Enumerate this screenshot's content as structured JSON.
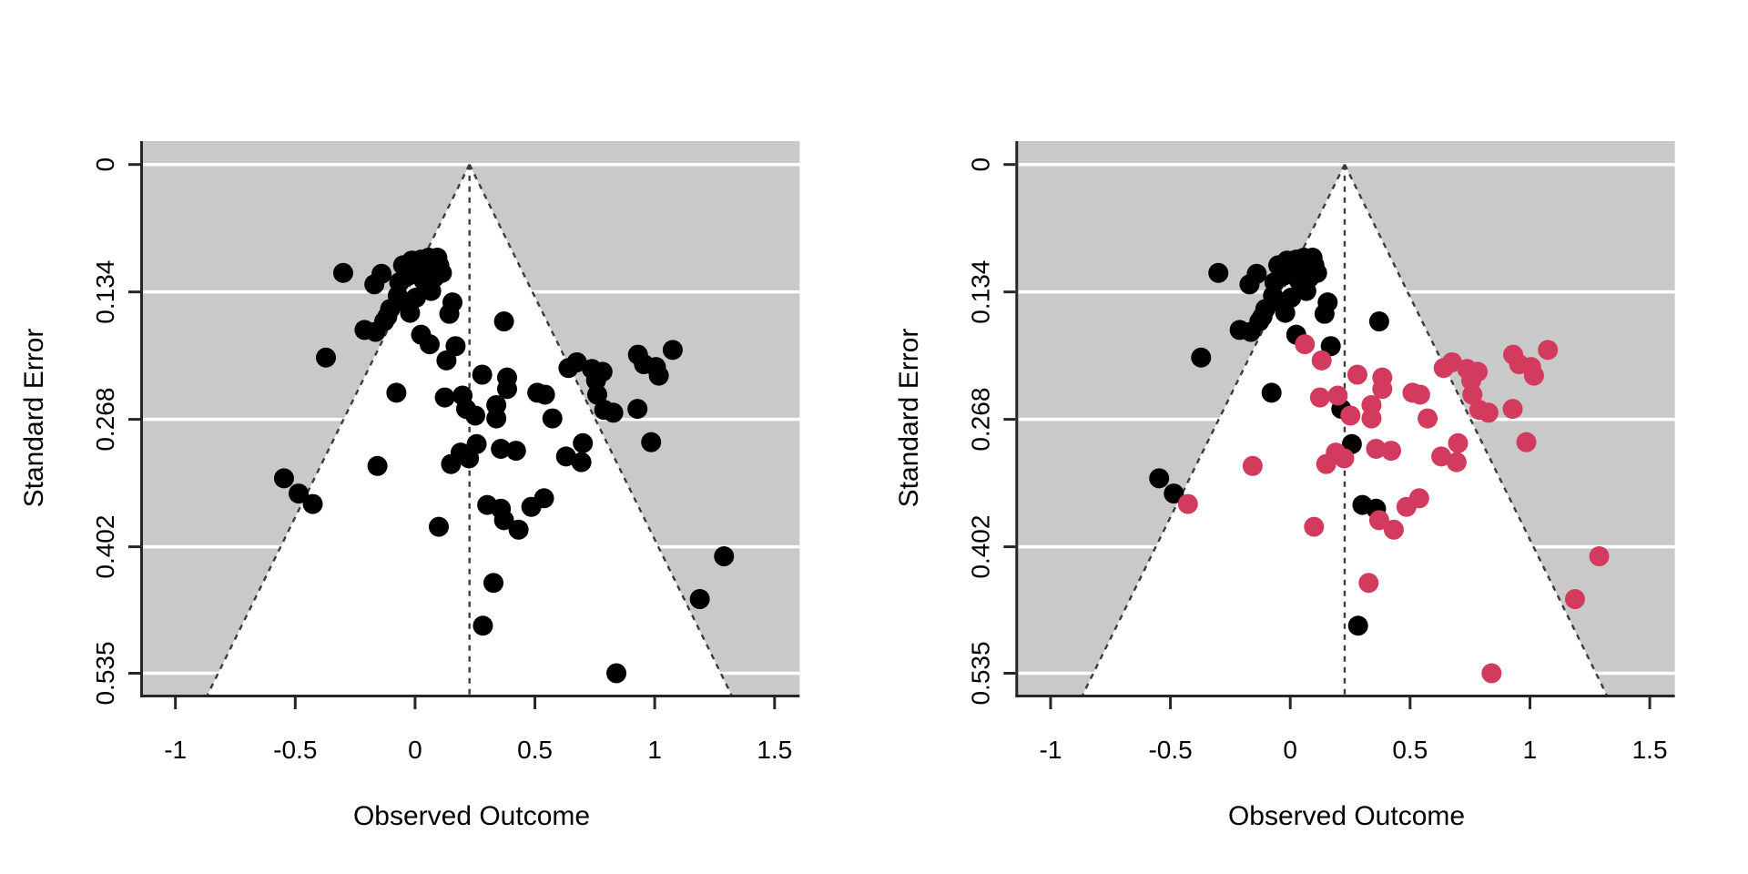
{
  "figure": {
    "background": "#ffffff",
    "description_note": "Two side-by-side funnel plots; right panel colors a subset of points red"
  },
  "chart_data": {
    "type": "scatter",
    "subtype": "funnel-plot-pair",
    "xlabel": "Observed Outcome",
    "ylabel": "Standard Error",
    "x_ticks": [
      -1,
      -0.5,
      0,
      0.5,
      1,
      1.5
    ],
    "x_tick_labels": [
      "-1",
      "-0.5",
      "0",
      "0.5",
      "1",
      "1.5"
    ],
    "y_ticks": [
      0,
      0.134,
      0.268,
      0.402,
      0.535
    ],
    "y_tick_labels": [
      "0",
      "0.134",
      "0.268",
      "0.402",
      "0.535"
    ],
    "xlim": [
      -1.1355,
      1.6045
    ],
    "se_lim": [
      -0.0246,
      0.5575
    ],
    "center_line_x": 0.227,
    "funnel_ci_z": 1.96,
    "grid": true,
    "legend": false,
    "colors": {
      "base": "#000000",
      "subset": "#d23b5e",
      "panel_bg": "#c9c9c9",
      "funnel_fill": "#ffffff",
      "grid": "#ffffff",
      "dash": "#3c3c3c",
      "axis": "#262626",
      "text": "#000000"
    },
    "points_format": "[observed_outcome, standard_error]",
    "series": [
      {
        "name": "studies-black-in-both-panels",
        "color_key": "base",
        "points": [
          [
            -0.3,
            0.114
          ],
          [
            -0.14,
            0.115
          ],
          [
            -0.17,
            0.126
          ],
          [
            -0.05,
            0.106
          ],
          [
            -0.013,
            0.101
          ],
          [
            0.025,
            0.1
          ],
          [
            0.057,
            0.098
          ],
          [
            0.093,
            0.098
          ],
          [
            0.101,
            0.106
          ],
          [
            0.074,
            0.109
          ],
          [
            0.036,
            0.111
          ],
          [
            0.004,
            0.112
          ],
          [
            -0.028,
            0.117
          ],
          [
            -0.066,
            0.124
          ],
          [
            0.036,
            0.122
          ],
          [
            0.08,
            0.119
          ],
          [
            0.112,
            0.114
          ],
          [
            0.067,
            0.133
          ],
          [
            0.004,
            0.14
          ],
          [
            -0.072,
            0.138
          ],
          [
            -0.028,
            0.148
          ],
          [
            0.156,
            0.145
          ],
          [
            0.143,
            0.157
          ],
          [
            -0.104,
            0.152
          ],
          [
            -0.116,
            0.16
          ],
          [
            -0.021,
            0.156
          ],
          [
            -0.211,
            0.174
          ],
          [
            -0.165,
            0.176
          ],
          [
            -0.129,
            0.165
          ],
          [
            0.025,
            0.179
          ],
          [
            0.169,
            0.191
          ],
          [
            0.371,
            0.165
          ],
          [
            -0.372,
            0.203
          ],
          [
            -0.078,
            0.24
          ],
          [
            0.213,
            0.257
          ],
          [
            0.257,
            0.294
          ],
          [
            -0.547,
            0.33
          ],
          [
            -0.486,
            0.346
          ],
          [
            0.301,
            0.358
          ],
          [
            0.358,
            0.362
          ],
          [
            0.283,
            0.485
          ]
        ]
      },
      {
        "name": "studies-red-in-right-panel",
        "color_key": "subset",
        "points": [
          [
            0.061,
            0.189
          ],
          [
            0.131,
            0.206
          ],
          [
            0.28,
            0.221
          ],
          [
            0.384,
            0.224
          ],
          [
            0.384,
            0.236
          ],
          [
            0.124,
            0.245
          ],
          [
            0.198,
            0.243
          ],
          [
            0.251,
            0.264
          ],
          [
            0.339,
            0.253
          ],
          [
            0.339,
            0.267
          ],
          [
            0.51,
            0.24
          ],
          [
            0.542,
            0.242
          ],
          [
            0.573,
            0.267
          ],
          [
            0.64,
            0.214
          ],
          [
            0.675,
            0.208
          ],
          [
            0.738,
            0.215
          ],
          [
            0.782,
            0.218
          ],
          [
            0.755,
            0.227
          ],
          [
            0.76,
            0.242
          ],
          [
            0.789,
            0.258
          ],
          [
            0.827,
            0.261
          ],
          [
            0.93,
            0.2
          ],
          [
            0.955,
            0.21
          ],
          [
            1.005,
            0.213
          ],
          [
            1.017,
            0.222
          ],
          [
            1.075,
            0.195
          ],
          [
            0.928,
            0.257
          ],
          [
            0.985,
            0.292
          ],
          [
            -0.157,
            0.317
          ],
          [
            0.15,
            0.315
          ],
          [
            0.225,
            0.309
          ],
          [
            0.19,
            0.303
          ],
          [
            0.358,
            0.299
          ],
          [
            0.421,
            0.301
          ],
          [
            0.63,
            0.307
          ],
          [
            0.7,
            0.293
          ],
          [
            0.694,
            0.313
          ],
          [
            -0.427,
            0.357
          ],
          [
            0.371,
            0.374
          ],
          [
            0.432,
            0.384
          ],
          [
            0.485,
            0.36
          ],
          [
            0.538,
            0.351
          ],
          [
            0.099,
            0.381
          ],
          [
            0.327,
            0.44
          ],
          [
            0.84,
            0.535
          ],
          [
            1.188,
            0.457
          ],
          [
            1.289,
            0.412
          ]
        ]
      }
    ],
    "panels": [
      {
        "id": "left",
        "color_mode": "all-black"
      },
      {
        "id": "right",
        "color_mode": "subset-red"
      }
    ]
  }
}
